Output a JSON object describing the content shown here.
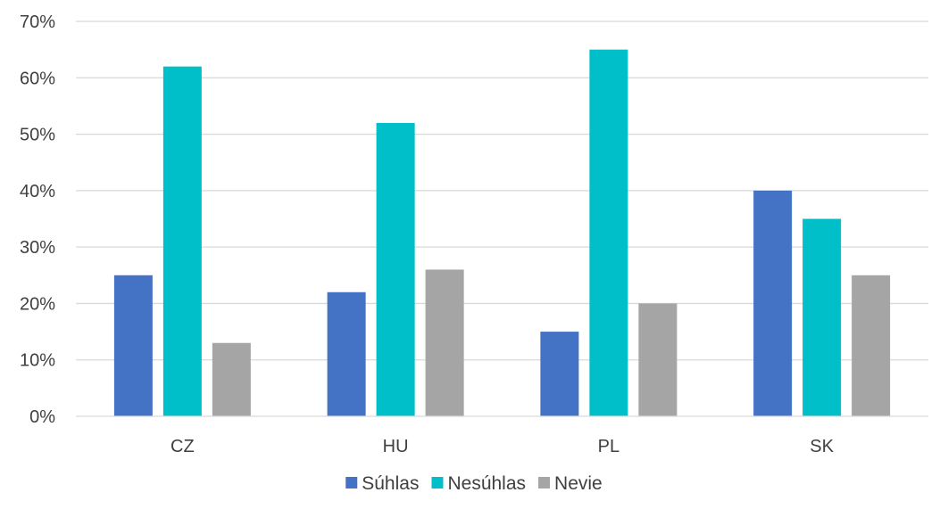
{
  "chart_data": {
    "type": "bar",
    "categories": [
      "CZ",
      "HU",
      "PL",
      "SK"
    ],
    "series": [
      {
        "name": "Súhlas",
        "color": "#4472C4",
        "values": [
          25,
          22,
          15,
          40
        ]
      },
      {
        "name": "Nesúhlas",
        "color": "#00BFC9",
        "values": [
          62,
          52,
          65,
          35
        ]
      },
      {
        "name": "Nevie",
        "color": "#A5A5A5",
        "values": [
          13,
          26,
          20,
          25
        ]
      }
    ],
    "unit": "%",
    "ylim": [
      0,
      70
    ],
    "yticks": [
      0,
      10,
      20,
      30,
      40,
      50,
      60,
      70
    ],
    "ytick_labels": [
      "0%",
      "10%",
      "20%",
      "30%",
      "40%",
      "50%",
      "60%",
      "70%"
    ],
    "grid": true,
    "legend_position": "bottom",
    "title": "",
    "xlabel": "",
    "ylabel": ""
  }
}
